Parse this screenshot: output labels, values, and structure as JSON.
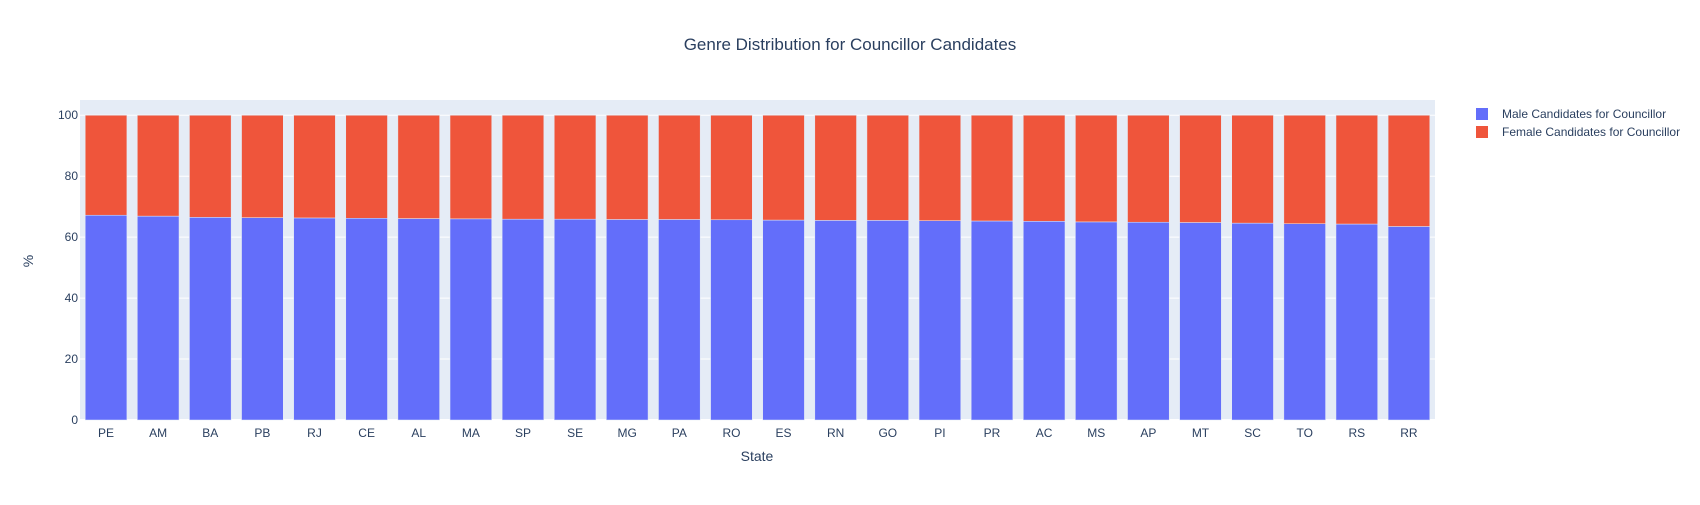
{
  "chart_data": {
    "type": "bar",
    "barmode": "stack",
    "title": "Genre Distribution for Councillor Candidates",
    "xlabel": "State",
    "ylabel": "%",
    "ylim": [
      0,
      105
    ],
    "yticks": [
      0,
      20,
      40,
      60,
      80,
      100
    ],
    "grid": true,
    "legend_position": "top-right",
    "categories": [
      "PE",
      "AM",
      "BA",
      "PB",
      "RJ",
      "CE",
      "AL",
      "MA",
      "SP",
      "SE",
      "MG",
      "PA",
      "RO",
      "ES",
      "RN",
      "GO",
      "PI",
      "PR",
      "AC",
      "MS",
      "AP",
      "MT",
      "SC",
      "TO",
      "RS",
      "RR"
    ],
    "series": [
      {
        "name": "Male Candidates for Councillor",
        "color": "#636efa",
        "values": [
          67.2,
          66.9,
          66.5,
          66.4,
          66.3,
          66.2,
          66.1,
          66.0,
          65.9,
          65.9,
          65.8,
          65.8,
          65.7,
          65.6,
          65.5,
          65.5,
          65.4,
          65.3,
          65.2,
          65.0,
          64.9,
          64.8,
          64.6,
          64.4,
          64.3,
          63.5
        ]
      },
      {
        "name": "Female Candidates for Councillor",
        "color": "#ef553b",
        "values": [
          32.8,
          33.1,
          33.5,
          33.6,
          33.7,
          33.8,
          33.9,
          34.0,
          34.1,
          34.1,
          34.2,
          34.2,
          34.3,
          34.4,
          34.5,
          34.5,
          34.6,
          34.7,
          34.8,
          35.0,
          35.1,
          35.2,
          35.4,
          35.6,
          35.7,
          36.5
        ]
      }
    ],
    "colors": {
      "plot_background": "#e5ecf6",
      "gridline": "#ffffff",
      "text": "#2a3f5f"
    }
  }
}
